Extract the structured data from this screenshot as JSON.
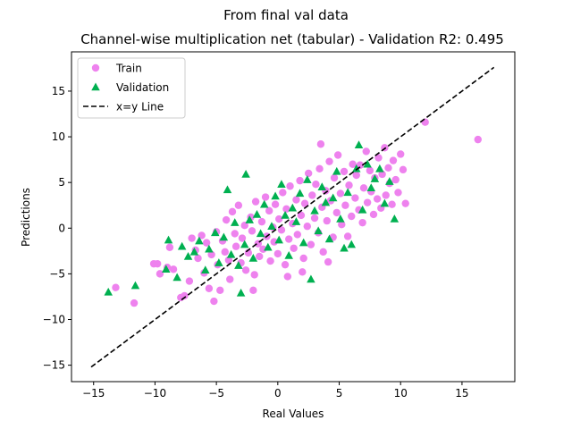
{
  "suptitle": "From final val data",
  "chart_data": {
    "type": "scatter",
    "title": "Channel-wise multiplication net (tabular) - Validation R2: 0.495",
    "xlabel": "Real Values",
    "ylabel": "Predictions",
    "xlim": [
      -16.8,
      19.3
    ],
    "ylim": [
      -16.8,
      19.3
    ],
    "xticks": [
      -15,
      -10,
      -5,
      0,
      5,
      10,
      15
    ],
    "yticks": [
      -15,
      -10,
      -5,
      0,
      5,
      10,
      15
    ],
    "grid": false,
    "legend_position": "upper left",
    "series": [
      {
        "name": "Train",
        "marker": "circle",
        "color": "#ee82ee",
        "points": [
          [
            -13.2,
            -6.5
          ],
          [
            -11.7,
            -8.2
          ],
          [
            -10.1,
            -3.9
          ],
          [
            -9.8,
            -3.9
          ],
          [
            -9.6,
            -5.0
          ],
          [
            -9.0,
            -4.3
          ],
          [
            -8.8,
            -2.1
          ],
          [
            -8.5,
            -4.5
          ],
          [
            -7.9,
            -7.6
          ],
          [
            -7.6,
            -7.4
          ],
          [
            -7.2,
            -5.8
          ],
          [
            -7.0,
            -1.1
          ],
          [
            -6.7,
            -2.4
          ],
          [
            -6.5,
            -3.3
          ],
          [
            -6.2,
            -0.8
          ],
          [
            -6.0,
            -4.9
          ],
          [
            -5.8,
            -1.6
          ],
          [
            -5.6,
            -6.6
          ],
          [
            -5.4,
            -2.9
          ],
          [
            -5.2,
            -8.0
          ],
          [
            -5.0,
            -0.4
          ],
          [
            -4.9,
            -4.0
          ],
          [
            -4.7,
            -6.8
          ],
          [
            -4.5,
            -1.4
          ],
          [
            -4.3,
            -2.6
          ],
          [
            -4.2,
            0.9
          ],
          [
            -4.0,
            -3.5
          ],
          [
            -3.9,
            -5.6
          ],
          [
            -3.7,
            1.8
          ],
          [
            -3.5,
            -0.6
          ],
          [
            -3.4,
            -2.0
          ],
          [
            -3.2,
            2.5
          ],
          [
            -3.0,
            -3.8
          ],
          [
            -2.9,
            -1.1
          ],
          [
            -2.7,
            0.3
          ],
          [
            -2.6,
            -4.6
          ],
          [
            -2.4,
            -2.7
          ],
          [
            -2.2,
            1.2
          ],
          [
            -2.1,
            -0.3
          ],
          [
            -1.9,
            -5.1
          ],
          [
            -1.8,
            2.9
          ],
          [
            -1.6,
            -1.7
          ],
          [
            -1.5,
            -3.1
          ],
          [
            -1.3,
            0.7
          ],
          [
            -1.2,
            -2.3
          ],
          [
            -1.0,
            3.4
          ],
          [
            -0.9,
            -0.9
          ],
          [
            -0.7,
            1.9
          ],
          [
            -0.6,
            -3.6
          ],
          [
            -0.4,
            0.1
          ],
          [
            -0.3,
            -1.5
          ],
          [
            -0.2,
            2.6
          ],
          [
            0.0,
            -2.8
          ],
          [
            0.1,
            1.0
          ],
          [
            0.3,
            -0.2
          ],
          [
            0.4,
            3.9
          ],
          [
            0.6,
            -4.0
          ],
          [
            0.7,
            2.1
          ],
          [
            0.9,
            -1.2
          ],
          [
            1.0,
            4.6
          ],
          [
            1.2,
            0.5
          ],
          [
            1.3,
            -2.2
          ],
          [
            1.5,
            3.1
          ],
          [
            1.6,
            -0.7
          ],
          [
            1.8,
            5.2
          ],
          [
            1.9,
            1.4
          ],
          [
            2.1,
            -3.3
          ],
          [
            2.2,
            2.7
          ],
          [
            2.4,
            0.2
          ],
          [
            2.5,
            6.0
          ],
          [
            2.7,
            -1.8
          ],
          [
            2.8,
            3.6
          ],
          [
            3.0,
            1.1
          ],
          [
            3.1,
            4.8
          ],
          [
            3.3,
            -0.5
          ],
          [
            3.4,
            6.5
          ],
          [
            3.6,
            2.3
          ],
          [
            3.7,
            -2.6
          ],
          [
            3.9,
            4.1
          ],
          [
            4.0,
            0.8
          ],
          [
            4.2,
            7.3
          ],
          [
            4.3,
            3.0
          ],
          [
            4.5,
            -1.0
          ],
          [
            4.6,
            5.5
          ],
          [
            4.8,
            1.7
          ],
          [
            4.9,
            8.0
          ],
          [
            5.1,
            3.8
          ],
          [
            5.2,
            0.4
          ],
          [
            5.4,
            6.2
          ],
          [
            5.5,
            2.5
          ],
          [
            5.7,
            -0.9
          ],
          [
            5.8,
            4.7
          ],
          [
            6.0,
            1.3
          ],
          [
            6.1,
            7.0
          ],
          [
            6.3,
            3.3
          ],
          [
            6.4,
            5.8
          ],
          [
            6.6,
            2.0
          ],
          [
            6.7,
            6.9
          ],
          [
            6.9,
            0.6
          ],
          [
            7.0,
            4.4
          ],
          [
            7.2,
            8.4
          ],
          [
            7.3,
            2.8
          ],
          [
            7.5,
            6.3
          ],
          [
            7.6,
            4.0
          ],
          [
            7.8,
            1.5
          ],
          [
            7.9,
            5.5
          ],
          [
            8.1,
            3.2
          ],
          [
            8.2,
            7.7
          ],
          [
            8.4,
            2.2
          ],
          [
            8.5,
            5.9
          ],
          [
            8.7,
            8.8
          ],
          [
            8.8,
            3.6
          ],
          [
            9.0,
            6.6
          ],
          [
            9.1,
            4.9
          ],
          [
            9.3,
            2.6
          ],
          [
            9.4,
            7.4
          ],
          [
            9.6,
            5.3
          ],
          [
            9.8,
            3.9
          ],
          [
            10.0,
            8.1
          ],
          [
            10.2,
            6.4
          ],
          [
            10.4,
            2.7
          ],
          [
            12.0,
            11.6
          ],
          [
            16.3,
            9.7
          ],
          [
            3.5,
            9.2
          ],
          [
            -2.0,
            -6.8
          ],
          [
            0.8,
            -5.3
          ],
          [
            2.0,
            -4.8
          ],
          [
            4.1,
            -3.7
          ]
        ]
      },
      {
        "name": "Validation",
        "marker": "triangle",
        "color": "#00b050",
        "points": [
          [
            -13.8,
            -7.0
          ],
          [
            -11.6,
            -6.3
          ],
          [
            -9.1,
            -4.5
          ],
          [
            -8.9,
            -1.3
          ],
          [
            -8.2,
            -5.4
          ],
          [
            -7.8,
            -2.0
          ],
          [
            -7.3,
            -3.1
          ],
          [
            -6.8,
            -2.6
          ],
          [
            -6.4,
            -1.4
          ],
          [
            -5.9,
            -4.6
          ],
          [
            -5.6,
            -2.3
          ],
          [
            -5.1,
            -0.5
          ],
          [
            -4.8,
            -3.8
          ],
          [
            -4.4,
            -1.0
          ],
          [
            -4.1,
            4.2
          ],
          [
            -3.8,
            -2.9
          ],
          [
            -3.5,
            0.6
          ],
          [
            -3.2,
            -4.1
          ],
          [
            -3.0,
            -7.1
          ],
          [
            -2.7,
            -1.8
          ],
          [
            -2.6,
            5.9
          ],
          [
            -2.3,
            0.9
          ],
          [
            -2.0,
            -3.3
          ],
          [
            -1.7,
            1.5
          ],
          [
            -1.4,
            -0.6
          ],
          [
            -1.1,
            2.6
          ],
          [
            -0.8,
            -2.1
          ],
          [
            -0.5,
            0.2
          ],
          [
            -0.2,
            3.5
          ],
          [
            0.1,
            -1.3
          ],
          [
            0.3,
            4.8
          ],
          [
            0.6,
            1.4
          ],
          [
            0.9,
            -3.0
          ],
          [
            1.2,
            2.2
          ],
          [
            1.5,
            0.7
          ],
          [
            1.8,
            3.8
          ],
          [
            2.1,
            -1.6
          ],
          [
            2.4,
            5.3
          ],
          [
            2.7,
            -5.6
          ],
          [
            3.0,
            1.9
          ],
          [
            3.3,
            -0.3
          ],
          [
            3.6,
            4.5
          ],
          [
            3.9,
            2.8
          ],
          [
            4.2,
            -1.2
          ],
          [
            4.5,
            3.3
          ],
          [
            4.8,
            6.2
          ],
          [
            5.1,
            1.0
          ],
          [
            5.4,
            -2.2
          ],
          [
            5.7,
            3.9
          ],
          [
            6.0,
            -1.8
          ],
          [
            6.4,
            6.5
          ],
          [
            6.6,
            9.1
          ],
          [
            6.9,
            2.0
          ],
          [
            7.3,
            7.0
          ],
          [
            7.6,
            4.4
          ],
          [
            7.9,
            5.4
          ],
          [
            8.3,
            6.5
          ],
          [
            8.7,
            2.7
          ],
          [
            9.1,
            5.1
          ],
          [
            9.5,
            1.0
          ]
        ]
      },
      {
        "name": "x=y Line",
        "marker": "dashed-line",
        "color": "#000000",
        "points": [
          [
            -15.2,
            -15.2
          ],
          [
            17.6,
            17.6
          ]
        ]
      }
    ]
  }
}
